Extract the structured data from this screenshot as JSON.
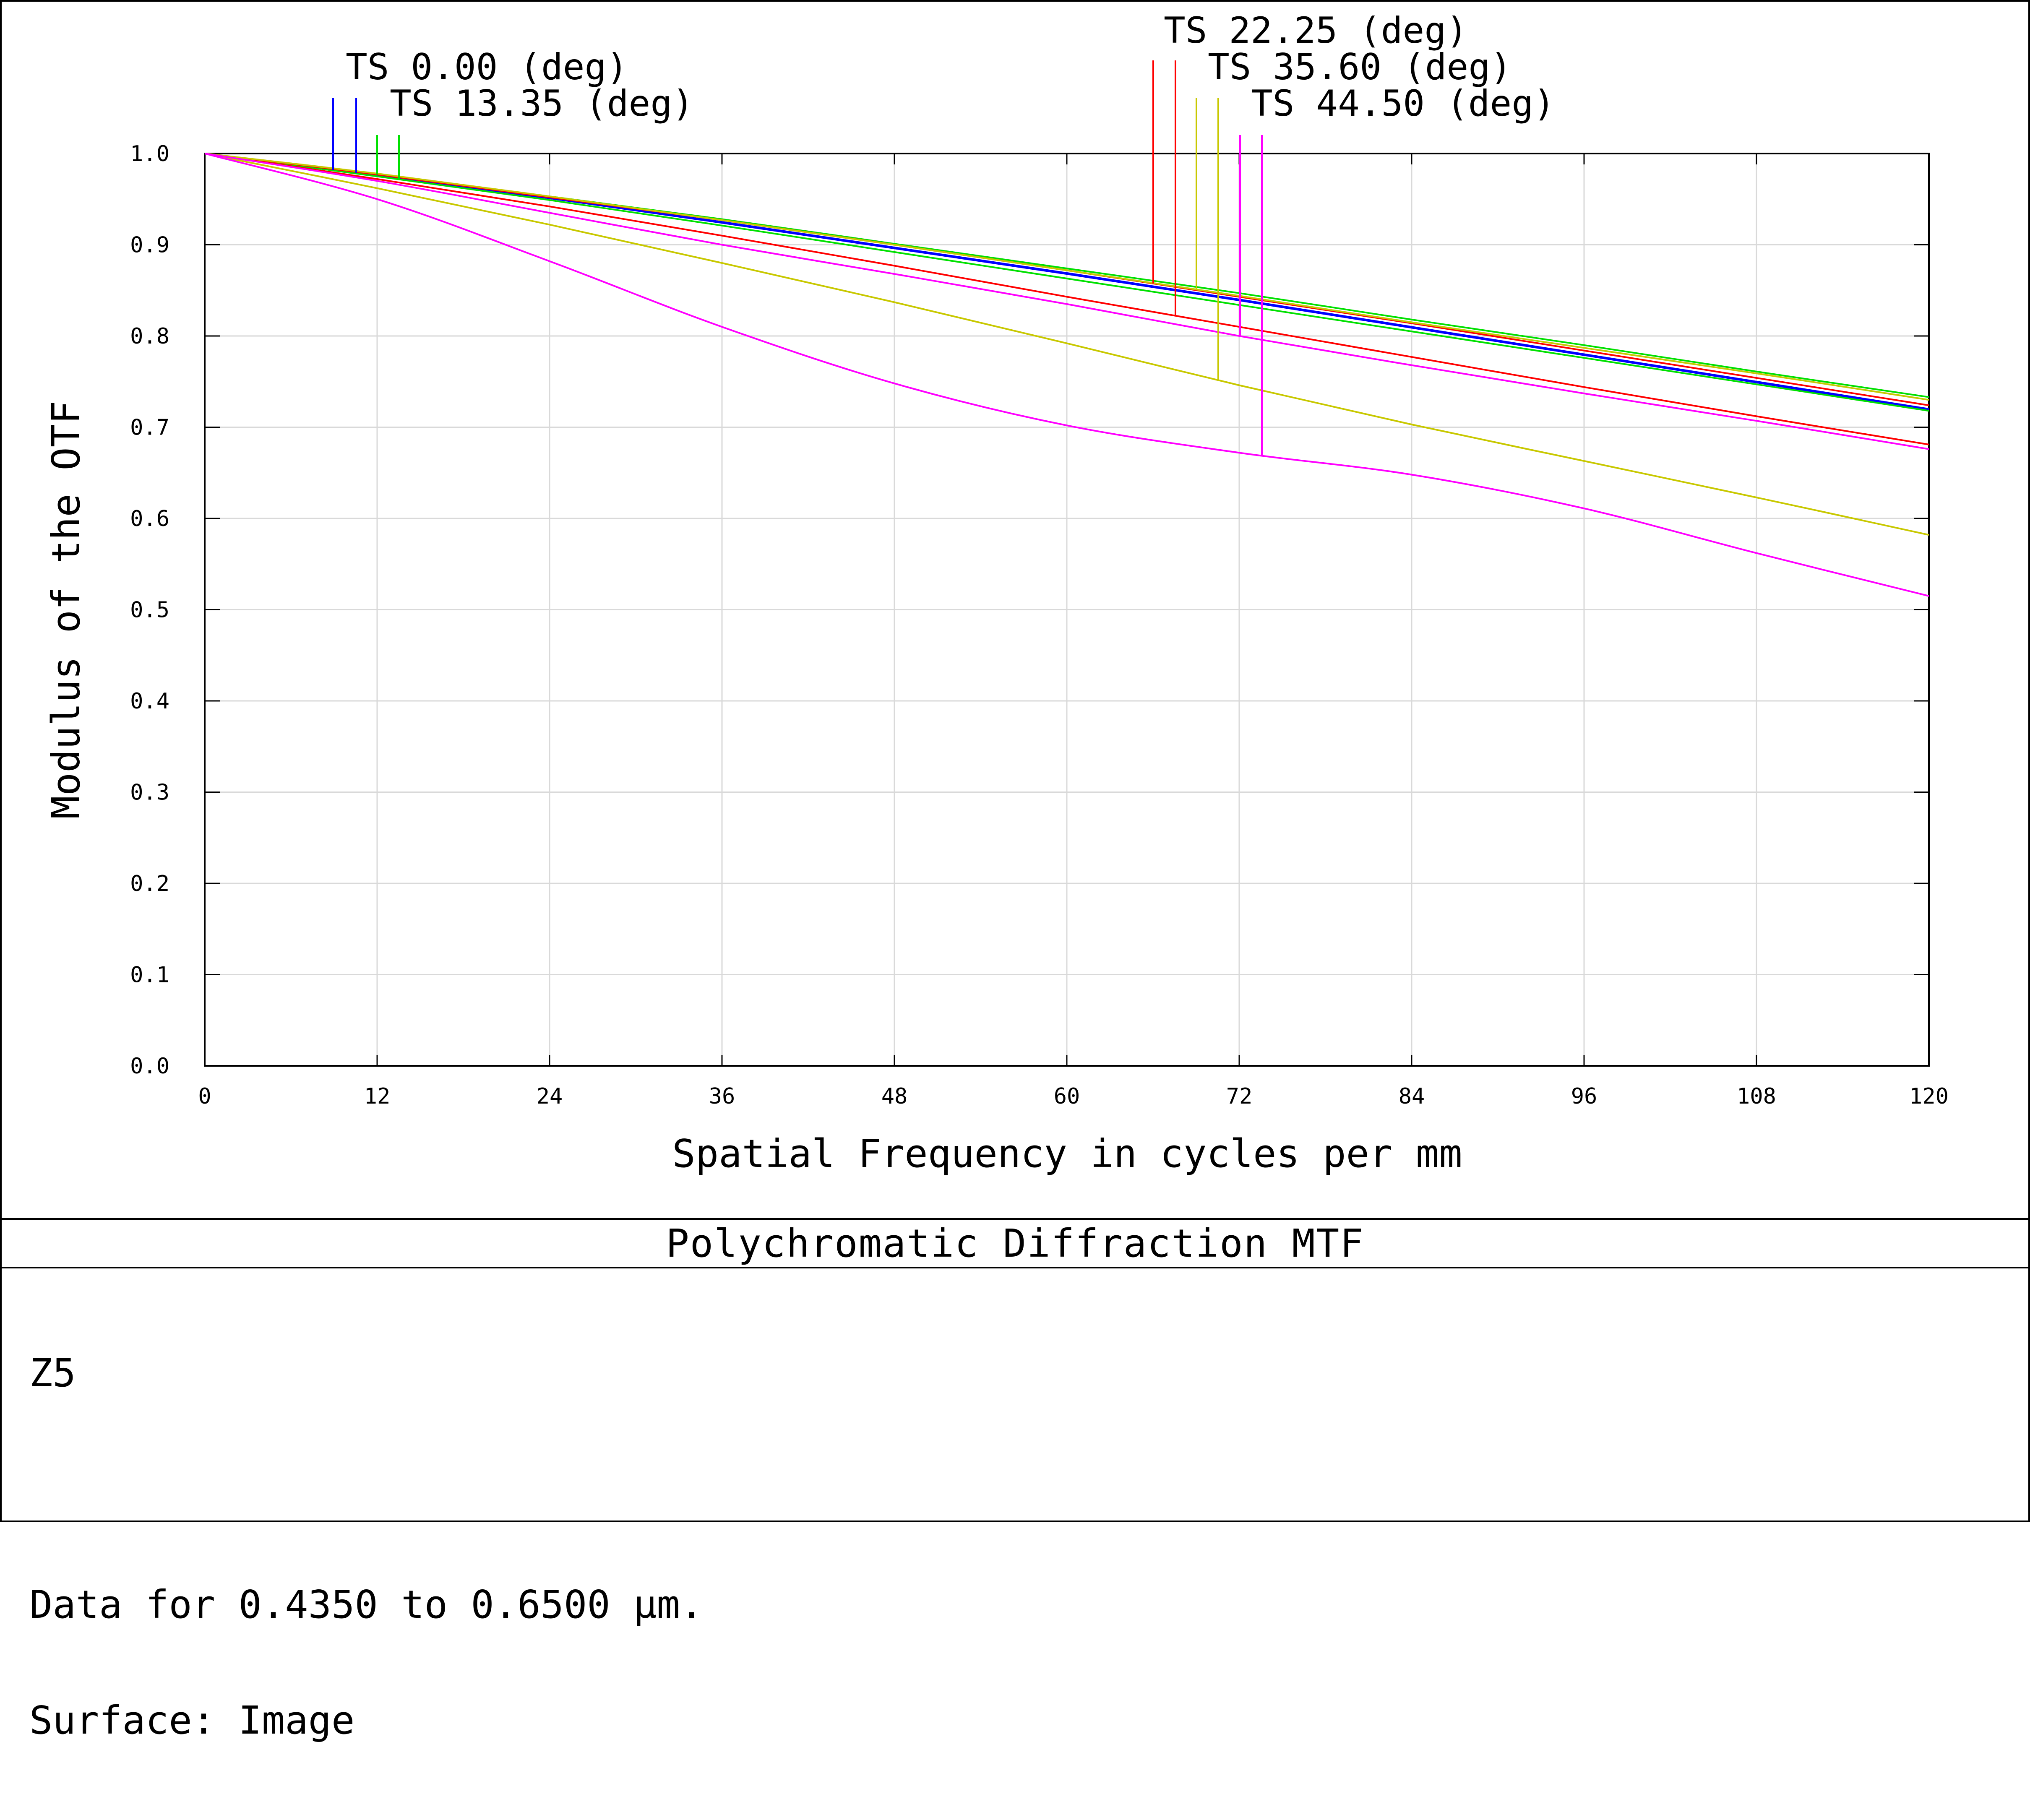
{
  "chart_data": {
    "type": "line",
    "xlabel": "Spatial Frequency in cycles per mm",
    "ylabel": "Modulus of the OTF",
    "xlim": [
      0,
      120
    ],
    "ylim": [
      0,
      1.0
    ],
    "x_ticks": [
      "0",
      "12",
      "24",
      "36",
      "48",
      "60",
      "72",
      "84",
      "96",
      "108",
      "120"
    ],
    "y_ticks": [
      "0.0",
      "0.1",
      "0.2",
      "0.3",
      "0.4",
      "0.5",
      "0.6",
      "0.7",
      "0.8",
      "0.9",
      "1.0"
    ],
    "grid": true,
    "x": [
      0,
      12,
      24,
      36,
      48,
      60,
      72,
      84,
      96,
      108,
      120
    ],
    "series": [
      {
        "name": "TS 0.00 (deg)",
        "kind": "T",
        "color": "#0000ff",
        "values": [
          1.0,
          0.976,
          0.951,
          0.925,
          0.897,
          0.869,
          0.84,
          0.81,
          0.78,
          0.75,
          0.72
        ]
      },
      {
        "name": "TS 0.00 (deg)",
        "kind": "S",
        "color": "#0000ff",
        "values": [
          1.0,
          0.976,
          0.951,
          0.924,
          0.896,
          0.868,
          0.839,
          0.809,
          0.779,
          0.749,
          0.719
        ]
      },
      {
        "name": "TS 13.35 (deg)",
        "kind": "T",
        "color": "#00e000",
        "values": [
          1.0,
          0.977,
          0.953,
          0.928,
          0.901,
          0.874,
          0.847,
          0.818,
          0.79,
          0.761,
          0.733
        ]
      },
      {
        "name": "TS 13.35 (deg)",
        "kind": "S",
        "color": "#00e000",
        "values": [
          1.0,
          0.975,
          0.949,
          0.921,
          0.892,
          0.863,
          0.834,
          0.805,
          0.776,
          0.747,
          0.718
        ]
      },
      {
        "name": "TS 22.25 (deg)",
        "kind": "T",
        "color": "#ff0000",
        "values": [
          1.0,
          0.977,
          0.952,
          0.927,
          0.9,
          0.872,
          0.843,
          0.814,
          0.784,
          0.754,
          0.724
        ]
      },
      {
        "name": "TS 22.25 (deg)",
        "kind": "S",
        "color": "#ff0000",
        "values": [
          1.0,
          0.972,
          0.942,
          0.91,
          0.877,
          0.843,
          0.81,
          0.777,
          0.744,
          0.712,
          0.681
        ]
      },
      {
        "name": "TS 35.60 (deg)",
        "kind": "T",
        "color": "#c8c800",
        "values": [
          1.0,
          0.962,
          0.922,
          0.88,
          0.837,
          0.792,
          0.746,
          0.703,
          0.663,
          0.623,
          0.582
        ]
      },
      {
        "name": "TS 35.60 (deg)",
        "kind": "S",
        "color": "#c8c800",
        "values": [
          1.0,
          0.978,
          0.953,
          0.927,
          0.9,
          0.872,
          0.844,
          0.815,
          0.787,
          0.759,
          0.73
        ]
      },
      {
        "name": "TS 44.50 (deg)",
        "kind": "T",
        "color": "#ff00ff",
        "values": [
          1.0,
          0.95,
          0.882,
          0.81,
          0.748,
          0.702,
          0.672,
          0.648,
          0.611,
          0.562,
          0.515
        ]
      },
      {
        "name": "TS 44.50 (deg)",
        "kind": "S",
        "color": "#ff00ff",
        "values": [
          1.0,
          0.97,
          0.935,
          0.9,
          0.868,
          0.835,
          0.8,
          0.768,
          0.737,
          0.707,
          0.676
        ]
      }
    ],
    "legend": [
      {
        "label": "TS 0.00 (deg)",
        "color": "#0000ff"
      },
      {
        "label": "TS 13.35 (deg)",
        "color": "#00e000"
      },
      {
        "label": "TS 22.25 (deg)",
        "color": "#ff0000"
      },
      {
        "label": "TS 35.60 (deg)",
        "color": "#c8c800"
      },
      {
        "label": "TS 44.50 (deg)",
        "color": "#ff00ff"
      }
    ]
  },
  "title": "Polychromatic Diffraction MTF",
  "info": {
    "line1": "Z5",
    "line2": "Data for 0.4350 to 0.6500 µm.",
    "line3": "Surface: Image"
  }
}
